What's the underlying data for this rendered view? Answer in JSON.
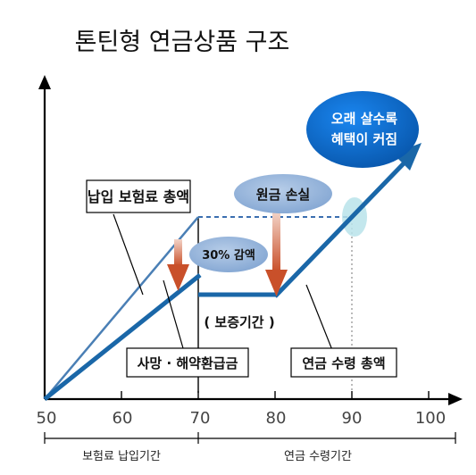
{
  "title": "톤틴형 연금상품 구조",
  "axis": {
    "x_ticks": [
      "50",
      "60",
      "70",
      "80",
      "90",
      "100"
    ],
    "period_labels": [
      "보험료 납입기간",
      "연금 수령기간"
    ]
  },
  "labels": {
    "premium_total": "납입 보험료 총액",
    "death_refund": "사망 · 해약환급금",
    "reduction_30": "30% 감액",
    "principal_loss": "원금 손실",
    "guarantee_period": "( 보증기간 )",
    "annuity_total": "연금 수령 총액",
    "longevity_benefit_line1": "오래 살수록",
    "longevity_benefit_line2": "혜택이 커짐"
  },
  "colors": {
    "main_line": "#1a67a8",
    "thin_line": "#4a7fb5",
    "dashed_line": "#3b6fb0",
    "arrow_red": "#d2603c",
    "oval_fill": "#8fb0d8",
    "oval_dark": "#0b63c4",
    "highlight": "#b9e3ea",
    "axis": "#000000"
  },
  "icons": {
    "down_arrow": "down-arrow-icon",
    "up_arrow": "arrow-up-right-icon"
  }
}
